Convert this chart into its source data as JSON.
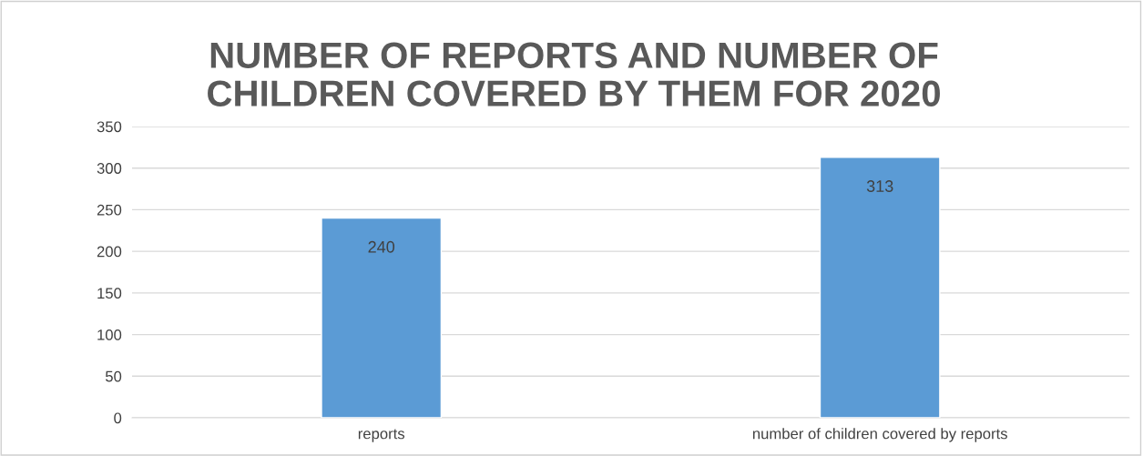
{
  "chart_data": {
    "type": "bar",
    "title": "NUMBER OF REPORTS AND NUMBER OF\nCHILDREN COVERED BY THEM FOR 2020",
    "categories": [
      "reports",
      "number of children covered by reports"
    ],
    "values": [
      240,
      313
    ],
    "color": "#5b9bd5",
    "ylim": [
      0,
      350
    ],
    "yticks": [
      0,
      50,
      100,
      150,
      200,
      250,
      300,
      350
    ],
    "grid": "y",
    "data_labels": true,
    "legend": false
  }
}
